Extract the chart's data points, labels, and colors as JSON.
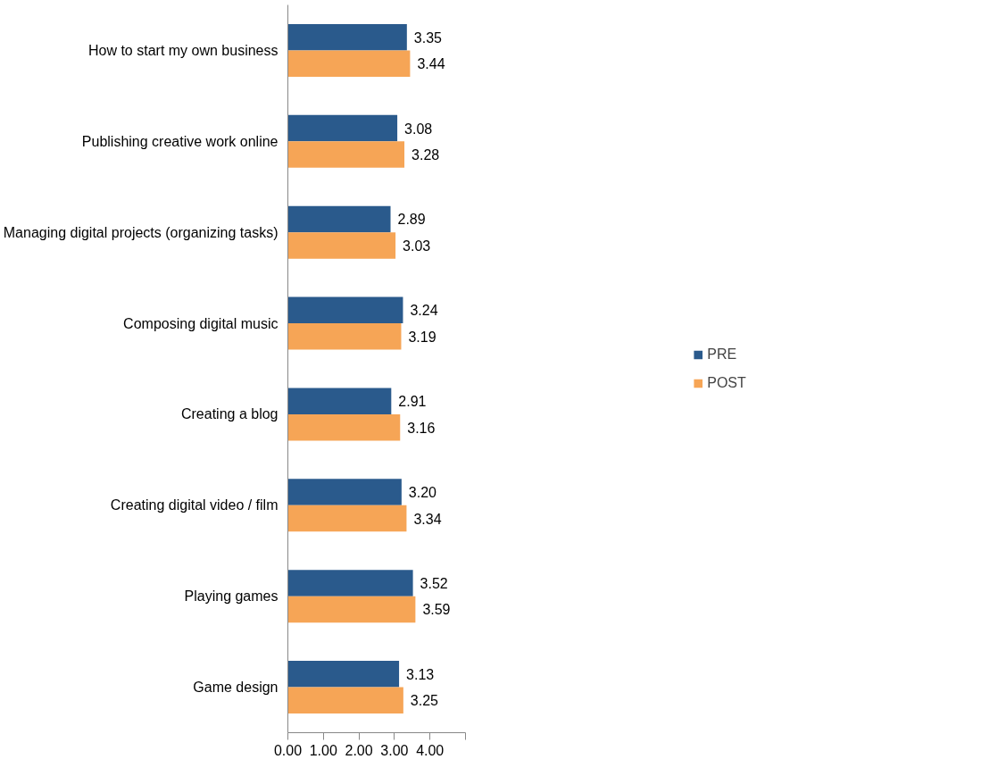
{
  "chart_data": {
    "type": "bar",
    "orientation": "horizontal",
    "categories": [
      "How to start my own business",
      "Publishing creative work online",
      "Managing digital projects (organizing tasks)",
      "Composing digital music",
      "Creating a blog",
      "Creating digital video / film",
      "Playing games",
      "Game design"
    ],
    "series": [
      {
        "name": "PRE",
        "color": "#2a5a8c",
        "values": [
          3.35,
          3.08,
          2.89,
          3.24,
          2.91,
          3.2,
          3.52,
          3.13
        ],
        "value_labels": [
          "3.35",
          "3.08",
          "2.89",
          "3.24",
          "2.91",
          "3.20",
          "3.52",
          "3.13"
        ]
      },
      {
        "name": "POST",
        "color": "#f6a556",
        "values": [
          3.44,
          3.28,
          3.03,
          3.19,
          3.16,
          3.34,
          3.59,
          3.25
        ],
        "value_labels": [
          "3.44",
          "3.28",
          "3.03",
          "3.19",
          "3.16",
          "3.34",
          "3.59",
          "3.25"
        ]
      }
    ],
    "xlim": [
      0,
      5
    ],
    "xticks": [
      {
        "value": 0,
        "label": "0.00"
      },
      {
        "value": 1,
        "label": "1.00"
      },
      {
        "value": 2,
        "label": "2.00"
      },
      {
        "value": 3,
        "label": "3.00"
      },
      {
        "value": 4,
        "label": "4.00"
      },
      {
        "value": 5,
        "label": null
      }
    ],
    "grid": false,
    "legend": "right"
  }
}
